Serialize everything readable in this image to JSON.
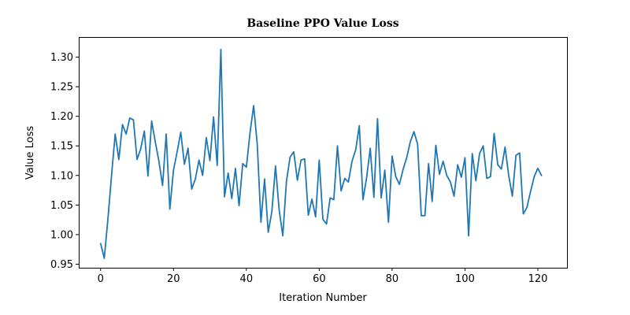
{
  "chart_data": {
    "type": "line",
    "title": "Baseline PPO Value Loss",
    "xlabel": "Iteration Number",
    "ylabel": "Value Loss",
    "xlim": [
      -6,
      128
    ],
    "ylim": [
      0.944,
      1.334
    ],
    "xticks": [
      0,
      20,
      40,
      60,
      80,
      100,
      120
    ],
    "yticks": [
      0.95,
      1.0,
      1.05,
      1.1,
      1.15,
      1.2,
      1.25,
      1.3
    ],
    "grid": false,
    "legend": "none",
    "color": "#1f77b4",
    "series": [
      {
        "x": [
          0,
          1,
          2,
          3,
          4,
          5,
          6,
          7,
          8,
          9,
          10,
          11,
          12,
          13,
          14,
          15,
          16,
          17,
          18,
          19,
          20,
          21,
          22,
          23,
          24,
          25,
          26,
          27,
          28,
          29,
          30,
          31,
          32,
          33,
          34,
          35,
          36,
          37,
          38,
          39,
          40,
          41,
          42,
          43,
          44,
          45,
          46,
          47,
          48,
          49,
          50,
          51,
          52,
          53,
          54,
          55,
          56,
          57,
          58,
          59,
          60,
          61,
          62,
          63,
          64,
          65,
          66,
          67,
          68,
          69,
          70,
          71,
          72,
          73,
          74,
          75,
          76,
          77,
          78,
          79,
          80,
          81,
          82,
          83,
          84,
          85,
          86,
          87,
          88,
          89,
          90,
          91,
          92,
          93,
          94,
          95,
          96,
          97,
          98,
          99,
          100,
          101,
          102,
          103,
          104,
          105,
          106,
          107,
          108,
          109,
          110,
          111,
          112,
          113,
          114,
          115,
          116,
          117,
          118,
          119,
          120,
          121
        ],
        "y": [
          0.985,
          0.96,
          1.026,
          1.1,
          1.17,
          1.127,
          1.186,
          1.17,
          1.197,
          1.194,
          1.127,
          1.145,
          1.175,
          1.099,
          1.192,
          1.157,
          1.124,
          1.083,
          1.17,
          1.043,
          1.109,
          1.14,
          1.173,
          1.119,
          1.146,
          1.077,
          1.094,
          1.126,
          1.1,
          1.164,
          1.125,
          1.199,
          1.117,
          1.313,
          1.064,
          1.104,
          1.061,
          1.112,
          1.049,
          1.12,
          1.114,
          1.172,
          1.218,
          1.152,
          1.021,
          1.094,
          1.004,
          1.039,
          1.116,
          1.042,
          0.998,
          1.09,
          1.131,
          1.14,
          1.092,
          1.126,
          1.128,
          1.033,
          1.06,
          1.03,
          1.126,
          1.026,
          1.018,
          1.062,
          1.059,
          1.15,
          1.074,
          1.095,
          1.089,
          1.124,
          1.143,
          1.184,
          1.059,
          1.096,
          1.146,
          1.063,
          1.196,
          1.062,
          1.109,
          1.021,
          1.133,
          1.098,
          1.085,
          1.11,
          1.13,
          1.157,
          1.174,
          1.153,
          1.032,
          1.032,
          1.12,
          1.056,
          1.151,
          1.102,
          1.124,
          1.1,
          1.089,
          1.065,
          1.118,
          1.097,
          1.13,
          0.998,
          1.137,
          1.091,
          1.137,
          1.15,
          1.095,
          1.098,
          1.171,
          1.118,
          1.111,
          1.148,
          1.1,
          1.065,
          1.134,
          1.138,
          1.035,
          1.046,
          1.073,
          1.098,
          1.112,
          1.1
        ]
      }
    ]
  }
}
